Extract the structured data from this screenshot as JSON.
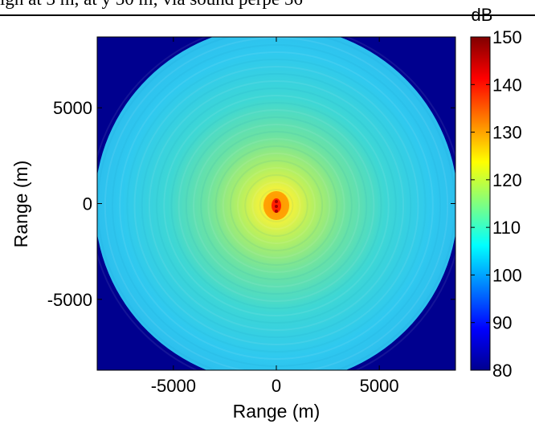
{
  "page": {
    "header_fragment": "igh at 3 m, at y 50 m; via sound perpe 56"
  },
  "chart_data": {
    "type": "heatmap",
    "title": "",
    "xlabel": "Range (m)",
    "ylabel": "Range (m)",
    "xlim": [
      -8700,
      8700
    ],
    "ylim": [
      -8700,
      8700
    ],
    "xticks": [
      -5000,
      0,
      5000
    ],
    "yticks": [
      5000,
      0,
      -5000
    ],
    "xtick_labels": [
      "-5000",
      "0",
      "5000"
    ],
    "ytick_labels": [
      "5000",
      "0",
      "-5000"
    ],
    "colorbar": {
      "label": "dB",
      "range": [
        80,
        150
      ],
      "ticks": [
        150,
        140,
        130,
        120,
        110,
        100,
        90,
        80
      ],
      "tick_labels": [
        "150",
        "140",
        "130",
        "120",
        "110",
        "100",
        "90",
        "80"
      ],
      "colormap": "jet"
    },
    "field": {
      "description_values_dB": {
        "background_outside_disk": 80,
        "source_peak": 150,
        "near_source": 125,
        "mid_range": 112,
        "disk_edge": 105
      },
      "disk_radius_m": 8800,
      "source_position_m": [
        0,
        0
      ]
    },
    "grid": false
  }
}
